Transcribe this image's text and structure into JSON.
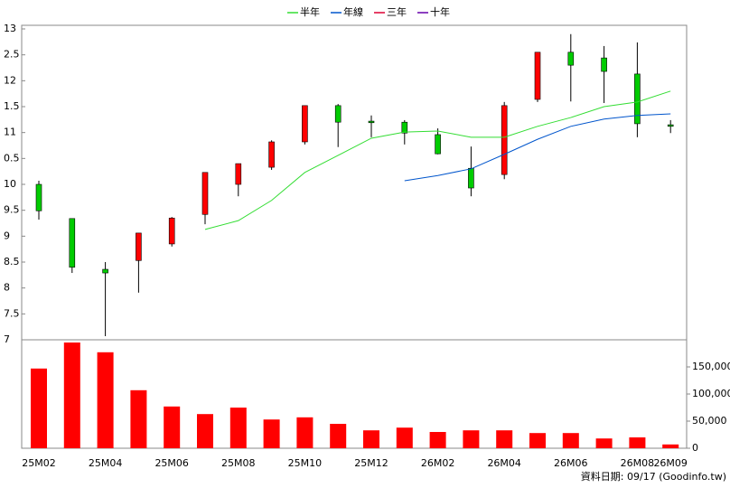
{
  "chart_data": {
    "type": "candlestick",
    "categories": [
      "25M02",
      null,
      "25M04",
      null,
      "25M06",
      null,
      "25M08",
      null,
      "25M10",
      null,
      "25M12",
      null,
      "26M02",
      null,
      "26M04",
      null,
      "26M06",
      null,
      "26M08",
      "26M09"
    ],
    "open": [
      10.0,
      9.34,
      8.36,
      8.53,
      8.85,
      9.42,
      10.0,
      10.33,
      10.82,
      11.52,
      11.22,
      11.2,
      10.96,
      10.31,
      10.19,
      11.64,
      12.55,
      12.44,
      12.13,
      11.15
    ],
    "high": [
      10.07,
      9.34,
      8.5,
      9.06,
      9.37,
      10.23,
      10.4,
      10.85,
      11.52,
      11.55,
      11.33,
      11.24,
      11.08,
      10.73,
      11.59,
      12.55,
      12.9,
      12.67,
      12.74,
      11.24
    ],
    "low": [
      9.32,
      8.29,
      7.07,
      7.91,
      8.8,
      9.23,
      9.77,
      10.28,
      10.77,
      10.72,
      10.91,
      10.77,
      10.58,
      9.77,
      10.1,
      11.59,
      11.6,
      11.57,
      10.91,
      10.99
    ],
    "close": [
      9.49,
      8.4,
      8.29,
      9.06,
      9.35,
      10.23,
      10.4,
      10.82,
      11.52,
      11.2,
      11.19,
      10.99,
      10.59,
      9.93,
      11.52,
      12.55,
      12.3,
      12.18,
      11.17,
      11.12
    ],
    "up_color": "#ff0000",
    "down_color": "#00cc00",
    "ylim": [
      7,
      13.07
    ],
    "yticks": [
      13,
      {
        "value": 12.5,
        "label": "2.5"
      },
      12,
      {
        "value": 11.5,
        "label": "1.5"
      },
      11,
      {
        "value": 10.5,
        "label": "0.5"
      },
      10,
      9.5,
      9,
      8.5,
      8,
      7.5,
      7
    ],
    "series": [
      {
        "name": "半年",
        "color": "#33dd33",
        "values": [
          null,
          null,
          null,
          null,
          null,
          9.13,
          9.3,
          9.69,
          10.23,
          10.56,
          10.89,
          11.01,
          11.03,
          10.91,
          10.91,
          11.12,
          11.29,
          11.5,
          11.59,
          11.8
        ]
      },
      {
        "name": "年線",
        "color": "#0055cc",
        "values": [
          null,
          null,
          null,
          null,
          null,
          null,
          null,
          null,
          null,
          null,
          null,
          10.07,
          10.17,
          10.3,
          10.58,
          10.87,
          11.12,
          11.26,
          11.33,
          11.36
        ]
      },
      {
        "name": "三年",
        "color": "#dd0033",
        "values": [
          null,
          null,
          null,
          null,
          null,
          null,
          null,
          null,
          null,
          null,
          null,
          null,
          null,
          null,
          null,
          null,
          null,
          null,
          null,
          null
        ]
      },
      {
        "name": "十年",
        "color": "#6600aa",
        "values": [
          null,
          null,
          null,
          null,
          null,
          null,
          null,
          null,
          null,
          null,
          null,
          null,
          null,
          null,
          null,
          null,
          null,
          null,
          null,
          null
        ]
      }
    ],
    "volume": {
      "type": "bar",
      "color": "#ff0000",
      "values": [
        147000,
        195000,
        177000,
        107000,
        77000,
        63000,
        75000,
        53000,
        57000,
        45000,
        33000,
        38000,
        30000,
        33000,
        33000,
        28000,
        28000,
        18000,
        20000,
        7000
      ],
      "ylim": [
        0,
        200000
      ],
      "yticks": [
        0,
        {
          "value": 50000,
          "label": "50,000"
        },
        {
          "value": 100000,
          "label": "100,000"
        },
        {
          "value": 150000,
          "label": "150,000"
        }
      ]
    },
    "footer": "資料日期: 09/17 (Goodinfo.tw)"
  }
}
